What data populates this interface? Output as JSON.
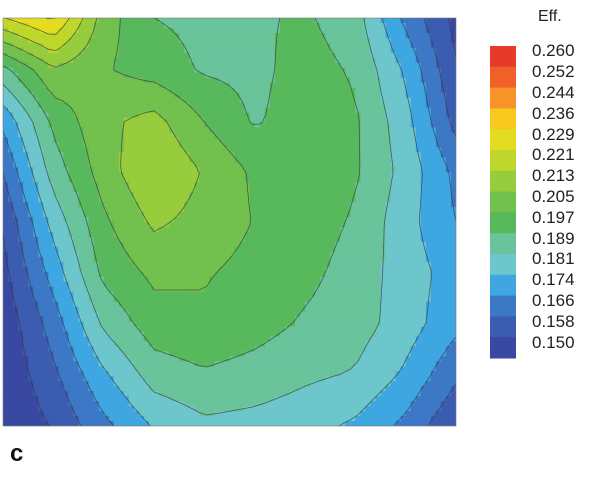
{
  "chart_data": {
    "type": "heatmap",
    "panel_label": "c",
    "colorbar": {
      "title": "Eff.",
      "ticks": [
        "0.260",
        "0.252",
        "0.244",
        "0.236",
        "0.229",
        "0.221",
        "0.213",
        "0.205",
        "0.197",
        "0.189",
        "0.181",
        "0.174",
        "0.166",
        "0.158",
        "0.150"
      ],
      "range": [
        0.15,
        0.26
      ],
      "colors": [
        "#e83a2a",
        "#f0612a",
        "#f79328",
        "#f9c81f",
        "#e3dc20",
        "#bfd62b",
        "#97cc3c",
        "#72c04d",
        "#58b85c",
        "#69c39b",
        "#6cc6cc",
        "#3ea6e0",
        "#3d78c7",
        "#3b5cb1",
        "#3948a1"
      ]
    },
    "grid_note_values": {
      "rows": 9,
      "cols": 10,
      "z": [
        [
          0.223,
          0.232,
          0.205,
          0.194,
          0.192,
          0.193,
          0.195,
          0.19,
          0.17,
          0.155
        ],
        [
          0.192,
          0.208,
          0.202,
          0.198,
          0.193,
          0.192,
          0.197,
          0.193,
          0.178,
          0.158
        ],
        [
          0.174,
          0.196,
          0.207,
          0.211,
          0.201,
          0.193,
          0.198,
          0.195,
          0.182,
          0.162
        ],
        [
          0.165,
          0.19,
          0.205,
          0.216,
          0.208,
          0.2,
          0.199,
          0.195,
          0.184,
          0.17
        ],
        [
          0.158,
          0.182,
          0.2,
          0.21,
          0.206,
          0.201,
          0.198,
          0.193,
          0.182,
          0.172
        ],
        [
          0.155,
          0.175,
          0.196,
          0.203,
          0.202,
          0.199,
          0.196,
          0.191,
          0.183,
          0.176
        ],
        [
          0.152,
          0.168,
          0.188,
          0.198,
          0.2,
          0.197,
          0.193,
          0.19,
          0.183,
          0.174
        ],
        [
          0.151,
          0.163,
          0.178,
          0.19,
          0.193,
          0.191,
          0.188,
          0.186,
          0.178,
          0.166
        ],
        [
          0.15,
          0.158,
          0.17,
          0.18,
          0.185,
          0.184,
          0.182,
          0.178,
          0.17,
          0.158
        ]
      ]
    }
  }
}
